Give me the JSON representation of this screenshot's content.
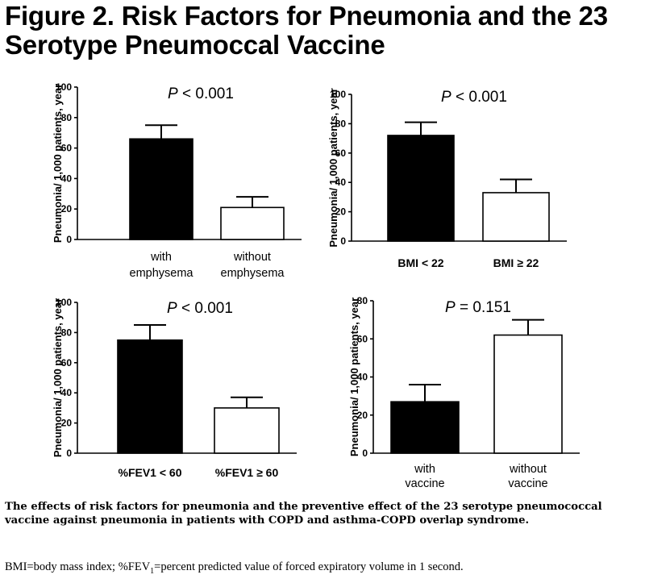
{
  "figure": {
    "title_line1": "Figure 2. Risk Factors for Pneumonia and the 23",
    "title_line2": "Serotype Pneumoccal Vaccine",
    "caption": "The effects of risk factors for pneumonia and the preventive effect of the 23 serotype pneumococcal vaccine against pneumonia in patients with COPD and asthma-COPD overlap syndrome.",
    "footnote_pre": "BMI=body mass index; %FEV",
    "footnote_sub": "1",
    "footnote_post": "=percent predicted value of forced expiratory volume in 1 second."
  },
  "chart_data": [
    {
      "type": "bar",
      "ylabel": "Pneumonia/ 1,000 patients, year",
      "ylim": [
        0,
        100
      ],
      "yticks": [
        0,
        20,
        40,
        60,
        80,
        100
      ],
      "p_prefix": "P",
      "p_rest": " < 0.001",
      "categories": [
        {
          "line1": "with",
          "line2": "emphysema",
          "value": 66,
          "error": 9,
          "fill": "#000000"
        },
        {
          "line1": "without",
          "line2": "emphysema",
          "value": 21,
          "error": 7,
          "fill": "#ffffff"
        }
      ]
    },
    {
      "type": "bar",
      "ylabel": "Pneumonia/ 1,000 patients, year",
      "ylim": [
        0,
        100
      ],
      "yticks": [
        0,
        20,
        40,
        60,
        80,
        100
      ],
      "p_prefix": "P",
      "p_rest": " < 0.001",
      "categories": [
        {
          "line1": "BMI < 22",
          "line2": "",
          "value": 72,
          "error": 9,
          "fill": "#000000"
        },
        {
          "line1": "BMI ≥ 22",
          "line2": "",
          "value": 33,
          "error": 9,
          "fill": "#ffffff"
        }
      ]
    },
    {
      "type": "bar",
      "ylabel": "Pneumonia/ 1,000 patients, year",
      "ylim": [
        0,
        100
      ],
      "yticks": [
        0,
        20,
        40,
        60,
        80,
        100
      ],
      "p_prefix": "P",
      "p_rest": " < 0.001",
      "categories": [
        {
          "line1": "%FEV1 < 60",
          "line2": "",
          "value": 75,
          "error": 10,
          "fill": "#000000"
        },
        {
          "line1": "%FEV1 ≥ 60",
          "line2": "",
          "value": 30,
          "error": 7,
          "fill": "#ffffff"
        }
      ]
    },
    {
      "type": "bar",
      "ylabel": "Pneumonia/ 1,000 patients, year",
      "ylim": [
        0,
        80
      ],
      "yticks": [
        0,
        20,
        40,
        60,
        80
      ],
      "p_prefix": "P",
      "p_rest": " = 0.151",
      "categories": [
        {
          "line1": "with",
          "line2": "vaccine",
          "value": 27,
          "error": 9,
          "fill": "#000000"
        },
        {
          "line1": "without",
          "line2": "vaccine",
          "value": 62,
          "error": 8,
          "fill": "#ffffff"
        }
      ]
    }
  ]
}
